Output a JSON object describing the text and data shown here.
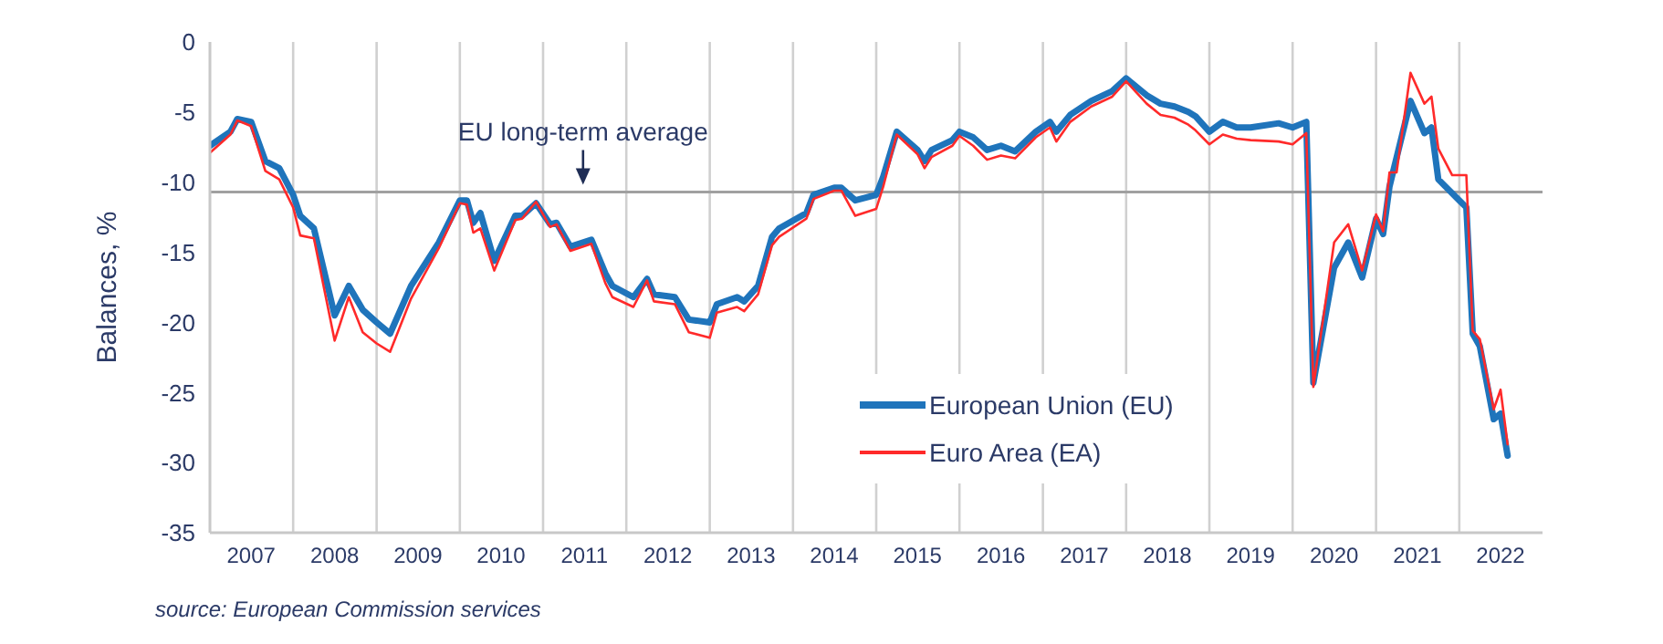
{
  "chart_data": {
    "type": "line",
    "ylabel": "Balances, %",
    "xlim": [
      "2007-01",
      "2023-01"
    ],
    "ylim": [
      -35,
      0
    ],
    "yticks": [
      0,
      -5,
      -10,
      -15,
      -20,
      -25,
      -30,
      -35
    ],
    "xticks": [
      {
        "value": "2007-07",
        "label": "2007"
      },
      {
        "value": "2008-01",
        "label": null
      },
      {
        "value": "2008-07",
        "label": "2008"
      },
      {
        "value": "2009-01",
        "label": null
      },
      {
        "value": "2009-07",
        "label": "2009"
      },
      {
        "value": "2010-01",
        "label": null
      },
      {
        "value": "2010-07",
        "label": "2010"
      },
      {
        "value": "2011-01",
        "label": null
      },
      {
        "value": "2011-07",
        "label": "2011"
      },
      {
        "value": "2012-01",
        "label": null
      },
      {
        "value": "2012-07",
        "label": "2012"
      },
      {
        "value": "2013-01",
        "label": null
      },
      {
        "value": "2013-07",
        "label": "2013"
      },
      {
        "value": "2014-01",
        "label": null
      },
      {
        "value": "2014-07",
        "label": "2014"
      },
      {
        "value": "2015-01",
        "label": null
      },
      {
        "value": "2015-07",
        "label": "2015"
      },
      {
        "value": "2016-01",
        "label": null
      },
      {
        "value": "2016-07",
        "label": "2016"
      },
      {
        "value": "2017-01",
        "label": null
      },
      {
        "value": "2017-07",
        "label": "2017"
      },
      {
        "value": "2018-01",
        "label": null
      },
      {
        "value": "2018-07",
        "label": "2018"
      },
      {
        "value": "2019-01",
        "label": null
      },
      {
        "value": "2019-07",
        "label": "2019"
      },
      {
        "value": "2020-01",
        "label": null
      },
      {
        "value": "2020-07",
        "label": "2020"
      },
      {
        "value": "2021-01",
        "label": null
      },
      {
        "value": "2021-07",
        "label": "2021"
      },
      {
        "value": "2022-01",
        "label": null
      },
      {
        "value": "2022-07",
        "label": "2022"
      }
    ],
    "grid": "x",
    "legend": "bottom right",
    "line_style": "solid",
    "marker": "none",
    "ref_lines": [
      {
        "axis": "y",
        "value": -10.7,
        "label": "EU long-term average",
        "color": "#a0a0a0"
      }
    ],
    "annotations": [
      "source: European Commission services"
    ],
    "series": [
      {
        "name": "European Union (EU)",
        "color": "#1f74bb",
        "x": [
          "2007-01",
          "2007-04",
          "2007-05",
          "2007-07",
          "2007-09",
          "2007-11",
          "2008-01",
          "2008-02",
          "2008-04",
          "2008-07",
          "2008-09",
          "2008-11",
          "2009-01",
          "2009-03",
          "2009-06",
          "2009-10",
          "2010-01",
          "2010-02",
          "2010-03",
          "2010-04",
          "2010-06",
          "2010-09",
          "2010-10",
          "2010-12",
          "2011-02",
          "2011-03",
          "2011-05",
          "2011-08",
          "2011-10",
          "2011-11",
          "2012-02",
          "2012-04",
          "2012-05",
          "2012-08",
          "2012-10",
          "2013-01",
          "2013-02",
          "2013-05",
          "2013-06",
          "2013-08",
          "2013-10",
          "2013-11",
          "2014-03",
          "2014-04",
          "2014-07",
          "2014-08",
          "2014-10",
          "2015-01",
          "2015-02",
          "2015-04",
          "2015-07",
          "2015-08",
          "2015-09",
          "2015-12",
          "2016-01",
          "2016-03",
          "2016-05",
          "2016-07",
          "2016-09",
          "2016-12",
          "2017-02",
          "2017-03",
          "2017-05",
          "2017-08",
          "2017-11",
          "2018-01",
          "2018-04",
          "2018-06",
          "2018-08",
          "2018-10",
          "2018-11",
          "2019-01",
          "2019-03",
          "2019-05",
          "2019-07",
          "2019-11",
          "2020-01",
          "2020-03",
          "2020-04",
          "2020-07",
          "2020-09",
          "2020-11",
          "2021-01",
          "2021-02",
          "2021-03",
          "2021-06",
          "2021-08",
          "2021-09",
          "2021-10",
          "2022-01",
          "2022-02",
          "2022-03",
          "2022-04",
          "2022-06",
          "2022-07",
          "2022-08"
        ],
        "values": [
          -7.4,
          -6.4,
          -5.5,
          -5.7,
          -8.5,
          -9,
          -10.9,
          -12.4,
          -13.3,
          -19.5,
          -17.4,
          -19.1,
          -20,
          -20.8,
          -17.4,
          -14.3,
          -11.3,
          -11.3,
          -12.9,
          -12.2,
          -15.6,
          -12.4,
          -12.4,
          -11.5,
          -13,
          -12.9,
          -14.6,
          -14.1,
          -16.5,
          -17.4,
          -18.2,
          -16.9,
          -18,
          -18.2,
          -19.8,
          -20,
          -18.7,
          -18.2,
          -18.5,
          -17.4,
          -13.9,
          -13.3,
          -12.2,
          -10.9,
          -10.4,
          -10.4,
          -11.3,
          -10.9,
          -9.6,
          -6.4,
          -7.7,
          -8.5,
          -7.7,
          -7,
          -6.4,
          -6.8,
          -7.7,
          -7.4,
          -7.8,
          -6.4,
          -5.7,
          -6.4,
          -5.2,
          -4.2,
          -3.5,
          -2.6,
          -3.8,
          -4.4,
          -4.6,
          -5,
          -5.3,
          -6.4,
          -5.7,
          -6.1,
          -6.1,
          -5.8,
          -6.1,
          -5.7,
          -24.3,
          -16.1,
          -14.3,
          -16.8,
          -12.6,
          -13.7,
          -10.3,
          -4.2,
          -6.5,
          -6.1,
          -9.8,
          -11.3,
          -11.8,
          -20.8,
          -21.7,
          -26.9,
          -26.5,
          -29.5
        ]
      },
      {
        "name": "Euro Area (EA)",
        "color": "#ff2a2a",
        "x": [
          "2007-01",
          "2007-04",
          "2007-05",
          "2007-07",
          "2007-09",
          "2007-11",
          "2008-01",
          "2008-02",
          "2008-04",
          "2008-07",
          "2008-09",
          "2008-11",
          "2009-01",
          "2009-03",
          "2009-06",
          "2009-10",
          "2010-01",
          "2010-02",
          "2010-03",
          "2010-04",
          "2010-06",
          "2010-09",
          "2010-10",
          "2010-12",
          "2011-02",
          "2011-03",
          "2011-05",
          "2011-08",
          "2011-10",
          "2011-11",
          "2012-02",
          "2012-04",
          "2012-05",
          "2012-08",
          "2012-10",
          "2013-01",
          "2013-02",
          "2013-05",
          "2013-06",
          "2013-08",
          "2013-10",
          "2013-11",
          "2014-03",
          "2014-04",
          "2014-07",
          "2014-08",
          "2014-10",
          "2015-01",
          "2015-02",
          "2015-04",
          "2015-07",
          "2015-08",
          "2015-09",
          "2015-12",
          "2016-01",
          "2016-03",
          "2016-05",
          "2016-07",
          "2016-09",
          "2016-12",
          "2017-02",
          "2017-03",
          "2017-05",
          "2017-08",
          "2017-11",
          "2018-01",
          "2018-04",
          "2018-06",
          "2018-08",
          "2018-10",
          "2018-11",
          "2019-01",
          "2019-03",
          "2019-05",
          "2019-07",
          "2019-11",
          "2020-01",
          "2020-03",
          "2020-04",
          "2020-07",
          "2020-09",
          "2020-11",
          "2021-01",
          "2021-02",
          "2021-03",
          "2021-04",
          "2021-06",
          "2021-08",
          "2021-09",
          "2021-10",
          "2021-12",
          "2022-02",
          "2022-03",
          "2022-04",
          "2022-06",
          "2022-07",
          "2022-08"
        ],
        "values": [
          -7.9,
          -6.6,
          -5.6,
          -6,
          -9.2,
          -9.8,
          -11.8,
          -13.8,
          -14,
          -21.3,
          -18.2,
          -20.7,
          -21.5,
          -22.1,
          -18.3,
          -14.7,
          -11.5,
          -11.6,
          -13.6,
          -13.3,
          -16.3,
          -12.7,
          -12.6,
          -11.4,
          -13.2,
          -13,
          -14.9,
          -14.4,
          -17.2,
          -18.2,
          -18.9,
          -17,
          -18.5,
          -18.7,
          -20.7,
          -21.1,
          -19.3,
          -18.9,
          -19.2,
          -18,
          -14.5,
          -13.9,
          -12.6,
          -11.2,
          -10.6,
          -10.6,
          -12.4,
          -11.9,
          -10.3,
          -6.6,
          -8,
          -9,
          -8.2,
          -7.4,
          -6.7,
          -7.4,
          -8.4,
          -8.1,
          -8.3,
          -6.8,
          -6.1,
          -7.1,
          -5.7,
          -4.6,
          -3.9,
          -2.8,
          -4.4,
          -5.2,
          -5.4,
          -5.9,
          -6.3,
          -7.3,
          -6.6,
          -6.9,
          -7,
          -7.1,
          -7.3,
          -6.5,
          -24.6,
          -14.3,
          -13,
          -16.3,
          -12.3,
          -13.5,
          -9.3,
          -9.3,
          -2.2,
          -4.4,
          -3.9,
          -7.6,
          -9.5,
          -9.5,
          -20.6,
          -21.2,
          -26.2,
          -24.8,
          -28.7
        ]
      }
    ]
  }
}
